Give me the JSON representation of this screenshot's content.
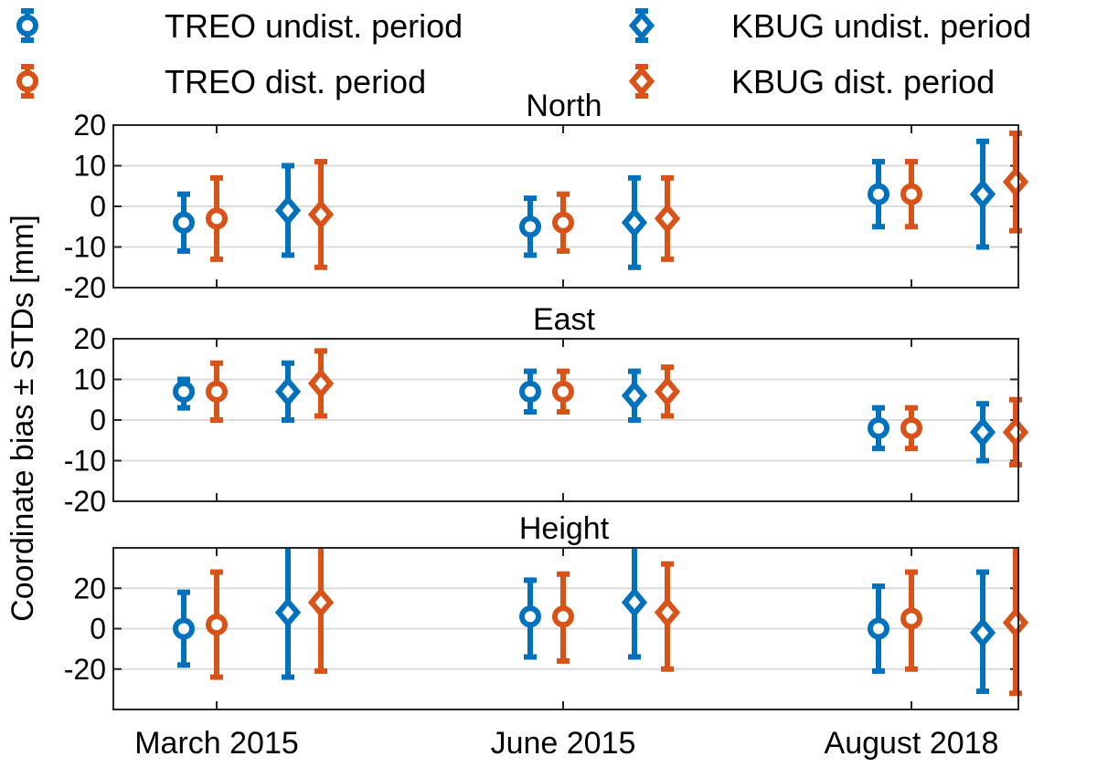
{
  "chart_data": {
    "type": "errorbar",
    "ylabel": "Coordinate bias ± STDs [mm]",
    "categories": [
      "March 2015",
      "June 2015",
      "August 2018"
    ],
    "legend": {
      "placement": "top",
      "entries": [
        {
          "label": "TREO undist. period",
          "marker": "circle",
          "color": "#0072BD"
        },
        {
          "label": "TREO dist. period",
          "marker": "circle",
          "color": "#D95319"
        },
        {
          "label": "KBUG undist. period",
          "marker": "diamond",
          "color": "#0072BD"
        },
        {
          "label": "KBUG dist. period",
          "marker": "diamond",
          "color": "#D95319"
        }
      ]
    },
    "series_styles": [
      {
        "color": "#0072BD",
        "marker": "circle"
      },
      {
        "color": "#D95319",
        "marker": "circle"
      },
      {
        "color": "#0072BD",
        "marker": "diamond"
      },
      {
        "color": "#D95319",
        "marker": "diamond"
      }
    ],
    "panels": [
      {
        "title": "North",
        "ylim": [
          -20,
          20
        ],
        "yticks": [
          -20,
          -10,
          0,
          10,
          20
        ],
        "grid": true,
        "points": [
          [
            {
              "y": -4,
              "lo": -11,
              "hi": 3
            },
            {
              "y": -3,
              "lo": -13,
              "hi": 7
            },
            {
              "y": -1,
              "lo": -12,
              "hi": 10
            },
            {
              "y": -2,
              "lo": -15,
              "hi": 11
            }
          ],
          [
            {
              "y": -5,
              "lo": -12,
              "hi": 2
            },
            {
              "y": -4,
              "lo": -11,
              "hi": 3
            },
            {
              "y": -4,
              "lo": -15,
              "hi": 7
            },
            {
              "y": -3,
              "lo": -13,
              "hi": 7
            }
          ],
          [
            {
              "y": 3,
              "lo": -5,
              "hi": 11
            },
            {
              "y": 3,
              "lo": -5,
              "hi": 11
            },
            {
              "y": 3,
              "lo": -10,
              "hi": 16
            },
            {
              "y": 6,
              "lo": -6,
              "hi": 18
            }
          ]
        ]
      },
      {
        "title": "East",
        "ylim": [
          -20,
          20
        ],
        "yticks": [
          -20,
          -10,
          0,
          10,
          20
        ],
        "grid": true,
        "points": [
          [
            {
              "y": 7,
              "lo": 3,
              "hi": 10
            },
            {
              "y": 7,
              "lo": 0,
              "hi": 14
            },
            {
              "y": 7,
              "lo": 0,
              "hi": 14
            },
            {
              "y": 9,
              "lo": 1,
              "hi": 17
            }
          ],
          [
            {
              "y": 7,
              "lo": 2,
              "hi": 12
            },
            {
              "y": 7,
              "lo": 2,
              "hi": 12
            },
            {
              "y": 6,
              "lo": 0,
              "hi": 12
            },
            {
              "y": 7,
              "lo": 1,
              "hi": 13
            }
          ],
          [
            {
              "y": -2,
              "lo": -7,
              "hi": 3
            },
            {
              "y": -2,
              "lo": -7,
              "hi": 3
            },
            {
              "y": -3,
              "lo": -10,
              "hi": 4
            },
            {
              "y": -3,
              "lo": -11,
              "hi": 5
            }
          ]
        ]
      },
      {
        "title": "Height",
        "ylim": [
          -40,
          40
        ],
        "yticks": [
          -20,
          0,
          20
        ],
        "grid": true,
        "points": [
          [
            {
              "y": 0,
              "lo": -18,
              "hi": 18
            },
            {
              "y": 2,
              "lo": -24,
              "hi": 28
            },
            {
              "y": 8,
              "lo": -24,
              "hi": 40
            },
            {
              "y": 13,
              "lo": -21,
              "hi": 40
            }
          ],
          [
            {
              "y": 6,
              "lo": -14,
              "hi": 24
            },
            {
              "y": 6,
              "lo": -16,
              "hi": 27
            },
            {
              "y": 13,
              "lo": -14,
              "hi": 40
            },
            {
              "y": 8,
              "lo": -20,
              "hi": 32
            }
          ],
          [
            {
              "y": 0,
              "lo": -21,
              "hi": 21
            },
            {
              "y": 5,
              "lo": -20,
              "hi": 28
            },
            {
              "y": -2,
              "lo": -31,
              "hi": 28
            },
            {
              "y": 3,
              "lo": -32,
              "hi": 40
            }
          ]
        ]
      }
    ]
  }
}
